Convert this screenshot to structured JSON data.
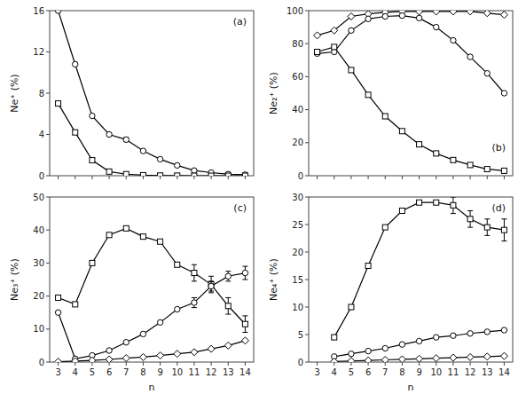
{
  "chart_data": [
    {
      "type": "line",
      "annotation": "(a)",
      "ylabel": "Ne⁺ (%)",
      "color": "black",
      "x": [
        3,
        4,
        5,
        6,
        7,
        8,
        9,
        10,
        11,
        12,
        13,
        14
      ],
      "xlim": [
        2.5,
        14.5
      ],
      "xticks": [
        3,
        4,
        5,
        6,
        7,
        8,
        9,
        10,
        11,
        12,
        13,
        14
      ],
      "ylim": [
        0,
        16
      ],
      "yticks": [
        0,
        4,
        8,
        12,
        16
      ],
      "tick_labels": "y",
      "series": [
        {
          "marker": "circle",
          "values": [
            16.0,
            10.8,
            5.8,
            4.0,
            3.5,
            2.4,
            1.6,
            1.0,
            0.5,
            0.3,
            0.15,
            0.1
          ],
          "errors": [
            null,
            null,
            null,
            null,
            0.2,
            null,
            null,
            null,
            null,
            null,
            null,
            null
          ]
        },
        {
          "marker": "square",
          "values": [
            7.0,
            4.2,
            1.5,
            0.4,
            0.15,
            0.05,
            0.02,
            0.01,
            0.0,
            0.0,
            0.0,
            0.0
          ]
        }
      ]
    },
    {
      "type": "line",
      "annotation": "(b)",
      "ylabel": "Ne₂⁺ (%)",
      "color": "black",
      "x": [
        3,
        4,
        5,
        6,
        7,
        8,
        9,
        10,
        11,
        12,
        13,
        14
      ],
      "xlim": [
        2.5,
        14.5
      ],
      "xticks": [
        3,
        4,
        5,
        6,
        7,
        8,
        9,
        10,
        11,
        12,
        13,
        14
      ],
      "ylim": [
        0,
        100
      ],
      "yticks": [
        0,
        20,
        40,
        60,
        80,
        100
      ],
      "tick_labels": "y",
      "series": [
        {
          "marker": "diamond",
          "values": [
            85.0,
            88.0,
            96.5,
            98.0,
            99.0,
            99.5,
            99.5,
            99.5,
            99.5,
            99.5,
            98.5,
            97.5
          ]
        },
        {
          "marker": "circle",
          "values": [
            74.0,
            75.0,
            88.0,
            95.0,
            96.5,
            97.0,
            95.5,
            90.0,
            82.0,
            72.0,
            62.0,
            50.0
          ]
        },
        {
          "marker": "square",
          "values": [
            75.0,
            78.0,
            64.0,
            49.0,
            36.0,
            27.0,
            19.0,
            13.5,
            9.5,
            6.5,
            4.0,
            3.0
          ]
        }
      ]
    },
    {
      "type": "line",
      "annotation": "(c)",
      "ylabel": "Ne₃⁺ (%)",
      "xlabel": "n",
      "color": "black",
      "x": [
        3,
        4,
        5,
        6,
        7,
        8,
        9,
        10,
        11,
        12,
        13,
        14
      ],
      "xlim": [
        2.5,
        14.5
      ],
      "xticks": [
        3,
        4,
        5,
        6,
        7,
        8,
        9,
        10,
        11,
        12,
        13,
        14
      ],
      "ylim": [
        0,
        50
      ],
      "yticks": [
        0,
        10,
        20,
        30,
        40,
        50
      ],
      "series": [
        {
          "marker": "square",
          "values": [
            19.5,
            17.5,
            30.0,
            38.5,
            40.5,
            38.0,
            36.5,
            29.5,
            27.0,
            23.5,
            17.0,
            11.5
          ],
          "errors": [
            null,
            null,
            null,
            null,
            null,
            null,
            null,
            null,
            2.5,
            2.5,
            2.5,
            2.5
          ]
        },
        {
          "marker": "circle",
          "values": [
            15.0,
            1.0,
            2.0,
            3.5,
            6.0,
            8.5,
            12.0,
            16.0,
            18.0,
            23.0,
            26.0,
            27.0
          ],
          "errors": [
            null,
            null,
            null,
            null,
            null,
            null,
            null,
            null,
            1.5,
            1.5,
            1.5,
            2.0
          ]
        },
        {
          "marker": "diamond",
          "values": [
            0.1,
            0.3,
            0.5,
            0.8,
            1.2,
            1.5,
            2.0,
            2.5,
            3.0,
            4.0,
            5.0,
            6.5
          ]
        }
      ]
    },
    {
      "type": "line",
      "annotation": "(d)",
      "ylabel": "Ne₄⁺ (%)",
      "xlabel": "n",
      "color": "black",
      "x": [
        4,
        5,
        6,
        7,
        8,
        9,
        10,
        11,
        12,
        13,
        14
      ],
      "xlim": [
        2.5,
        14.5
      ],
      "xticks": [
        3,
        4,
        5,
        6,
        7,
        8,
        9,
        10,
        11,
        12,
        13,
        14
      ],
      "ylim": [
        0,
        30
      ],
      "yticks": [
        0,
        5,
        10,
        15,
        20,
        25,
        30
      ],
      "series": [
        {
          "marker": "square",
          "values": [
            4.5,
            10.0,
            17.5,
            24.5,
            27.5,
            29.0,
            29.0,
            28.5,
            26.0,
            24.5,
            24.0
          ],
          "errors": [
            null,
            null,
            null,
            null,
            null,
            null,
            null,
            1.5,
            1.5,
            1.5,
            2.0
          ]
        },
        {
          "marker": "circle",
          "values": [
            1.0,
            1.5,
            2.0,
            2.5,
            3.2,
            3.8,
            4.5,
            4.8,
            5.2,
            5.5,
            5.8
          ]
        },
        {
          "marker": "diamond",
          "values": [
            0.1,
            0.2,
            0.3,
            0.4,
            0.5,
            0.6,
            0.7,
            0.8,
            0.9,
            1.0,
            1.1
          ]
        }
      ]
    }
  ]
}
